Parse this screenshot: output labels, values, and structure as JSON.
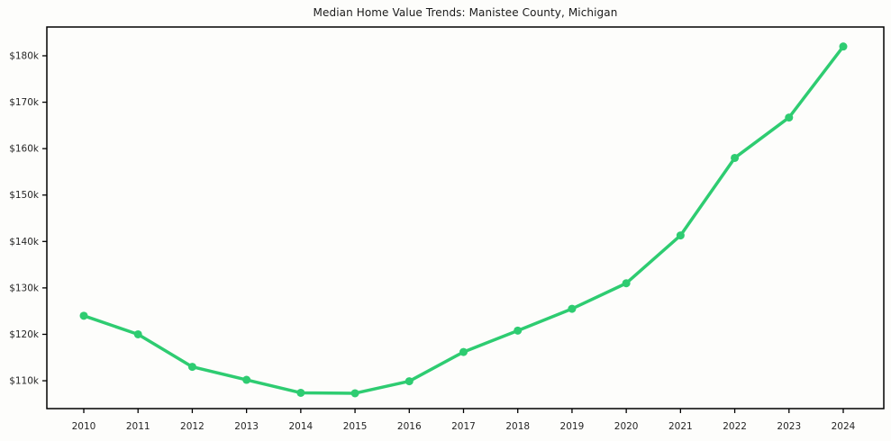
{
  "chart_data": {
    "type": "line",
    "title": "Median Home Value Trends: Manistee County, Michigan",
    "xlabel": "",
    "ylabel": "",
    "x": [
      2010,
      2011,
      2012,
      2013,
      2014,
      2015,
      2016,
      2017,
      2018,
      2019,
      2020,
      2021,
      2022,
      2023,
      2024
    ],
    "xtick_labels": [
      "2010",
      "2011",
      "2012",
      "2013",
      "2014",
      "2015",
      "2016",
      "2017",
      "2018",
      "2019",
      "2020",
      "2021",
      "2022",
      "2023",
      "2024"
    ],
    "series": [
      {
        "name": "Median Home Value",
        "values": [
          124000,
          120000,
          113000,
          110200,
          107400,
          107300,
          109900,
          116200,
          120800,
          125500,
          131000,
          141300,
          158000,
          166700,
          182000
        ],
        "color": "#2ecc71"
      }
    ],
    "ylim": [
      104000,
      186200
    ],
    "ytick_values": [
      110000,
      120000,
      130000,
      140000,
      150000,
      160000,
      170000,
      180000
    ],
    "ytick_labels": [
      "$110k",
      "$120k",
      "$130k",
      "$140k",
      "$150k",
      "$160k",
      "$170k",
      "$180k"
    ],
    "grid": false,
    "legend_position": "none",
    "frame_color": "#000000",
    "tick_text_color": "#262626",
    "marker": "circle"
  }
}
